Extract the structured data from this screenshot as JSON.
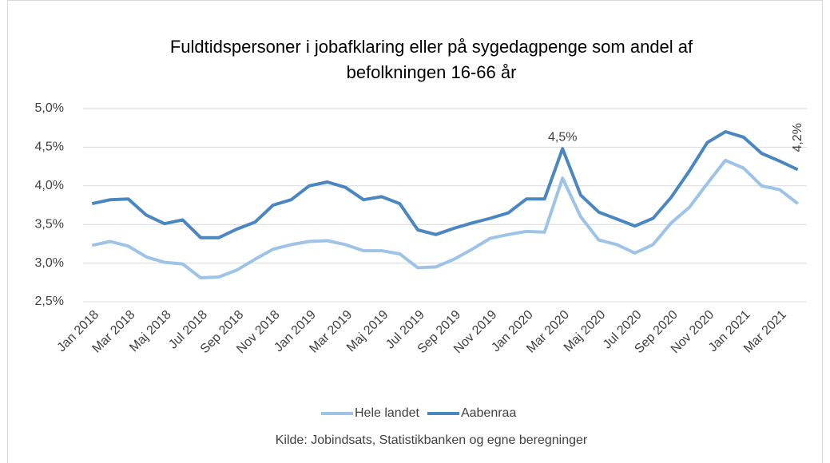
{
  "chart_data": {
    "type": "line",
    "title": [
      "Fuldtidspersoner i jobafklaring eller på sygedagpenge som andel af",
      "befolkningen 16-66 år"
    ],
    "categories": [
      "Jan 2018",
      null,
      "Mar 2018",
      null,
      "Maj 2018",
      null,
      "Jul 2018",
      null,
      "Sep 2018",
      null,
      "Nov 2018",
      null,
      "Jan 2019",
      null,
      "Mar 2019",
      null,
      "Maj 2019",
      null,
      "Jul 2019",
      null,
      "Sep 2019",
      null,
      "Nov 2019",
      null,
      "Jan 2020",
      null,
      "Mar 2020",
      null,
      "Maj 2020",
      null,
      "Jul 2020",
      null,
      "Sep 2020",
      null,
      "Nov 2020",
      null,
      "Jan 2021",
      null,
      "Mar 2021",
      null
    ],
    "series": [
      {
        "name": "Hele landet",
        "color": "#9dc3e6",
        "values": [
          3.23,
          3.28,
          3.22,
          3.08,
          3.01,
          2.99,
          2.81,
          2.82,
          2.91,
          3.05,
          3.18,
          3.24,
          3.28,
          3.29,
          3.24,
          3.16,
          3.16,
          3.12,
          2.94,
          2.95,
          3.05,
          3.18,
          3.32,
          3.37,
          3.41,
          3.4,
          4.1,
          3.6,
          3.3,
          3.24,
          3.13,
          3.24,
          3.52,
          3.72,
          4.03,
          4.33,
          4.23,
          4.0,
          3.95,
          3.77
        ]
      },
      {
        "name": "Aabenraa",
        "color": "#4a86bf",
        "values": [
          3.77,
          3.82,
          3.83,
          3.62,
          3.51,
          3.56,
          3.33,
          3.33,
          3.44,
          3.53,
          3.75,
          3.82,
          4.0,
          4.05,
          3.98,
          3.82,
          3.86,
          3.77,
          3.43,
          3.37,
          3.45,
          3.52,
          3.58,
          3.65,
          3.83,
          3.83,
          4.48,
          3.88,
          3.66,
          3.57,
          3.48,
          3.58,
          3.85,
          4.19,
          4.56,
          4.7,
          4.63,
          4.42,
          4.32,
          4.21
        ],
        "value_labels": [
          null,
          null,
          null,
          null,
          null,
          null,
          null,
          null,
          null,
          null,
          null,
          null,
          null,
          null,
          null,
          null,
          null,
          null,
          null,
          null,
          null,
          null,
          null,
          null,
          null,
          null,
          "4,5%",
          null,
          null,
          null,
          null,
          null,
          null,
          null,
          null,
          null,
          null,
          null,
          null,
          "4,2%"
        ]
      }
    ],
    "ylim": [
      2.5,
      5.0
    ],
    "yticks": [
      {
        "value": 2.5,
        "label": "2,5%"
      },
      {
        "value": 3.0,
        "label": "3,0%"
      },
      {
        "value": 3.5,
        "label": "3,5%"
      },
      {
        "value": 4.0,
        "label": "4,0%"
      },
      {
        "value": 4.5,
        "label": "4,5%"
      },
      {
        "value": 5.0,
        "label": "5,0%"
      }
    ],
    "grid": true,
    "legend": "bottom",
    "source": "Kilde: Jobindsats, Statistikbanken og egne beregninger"
  }
}
